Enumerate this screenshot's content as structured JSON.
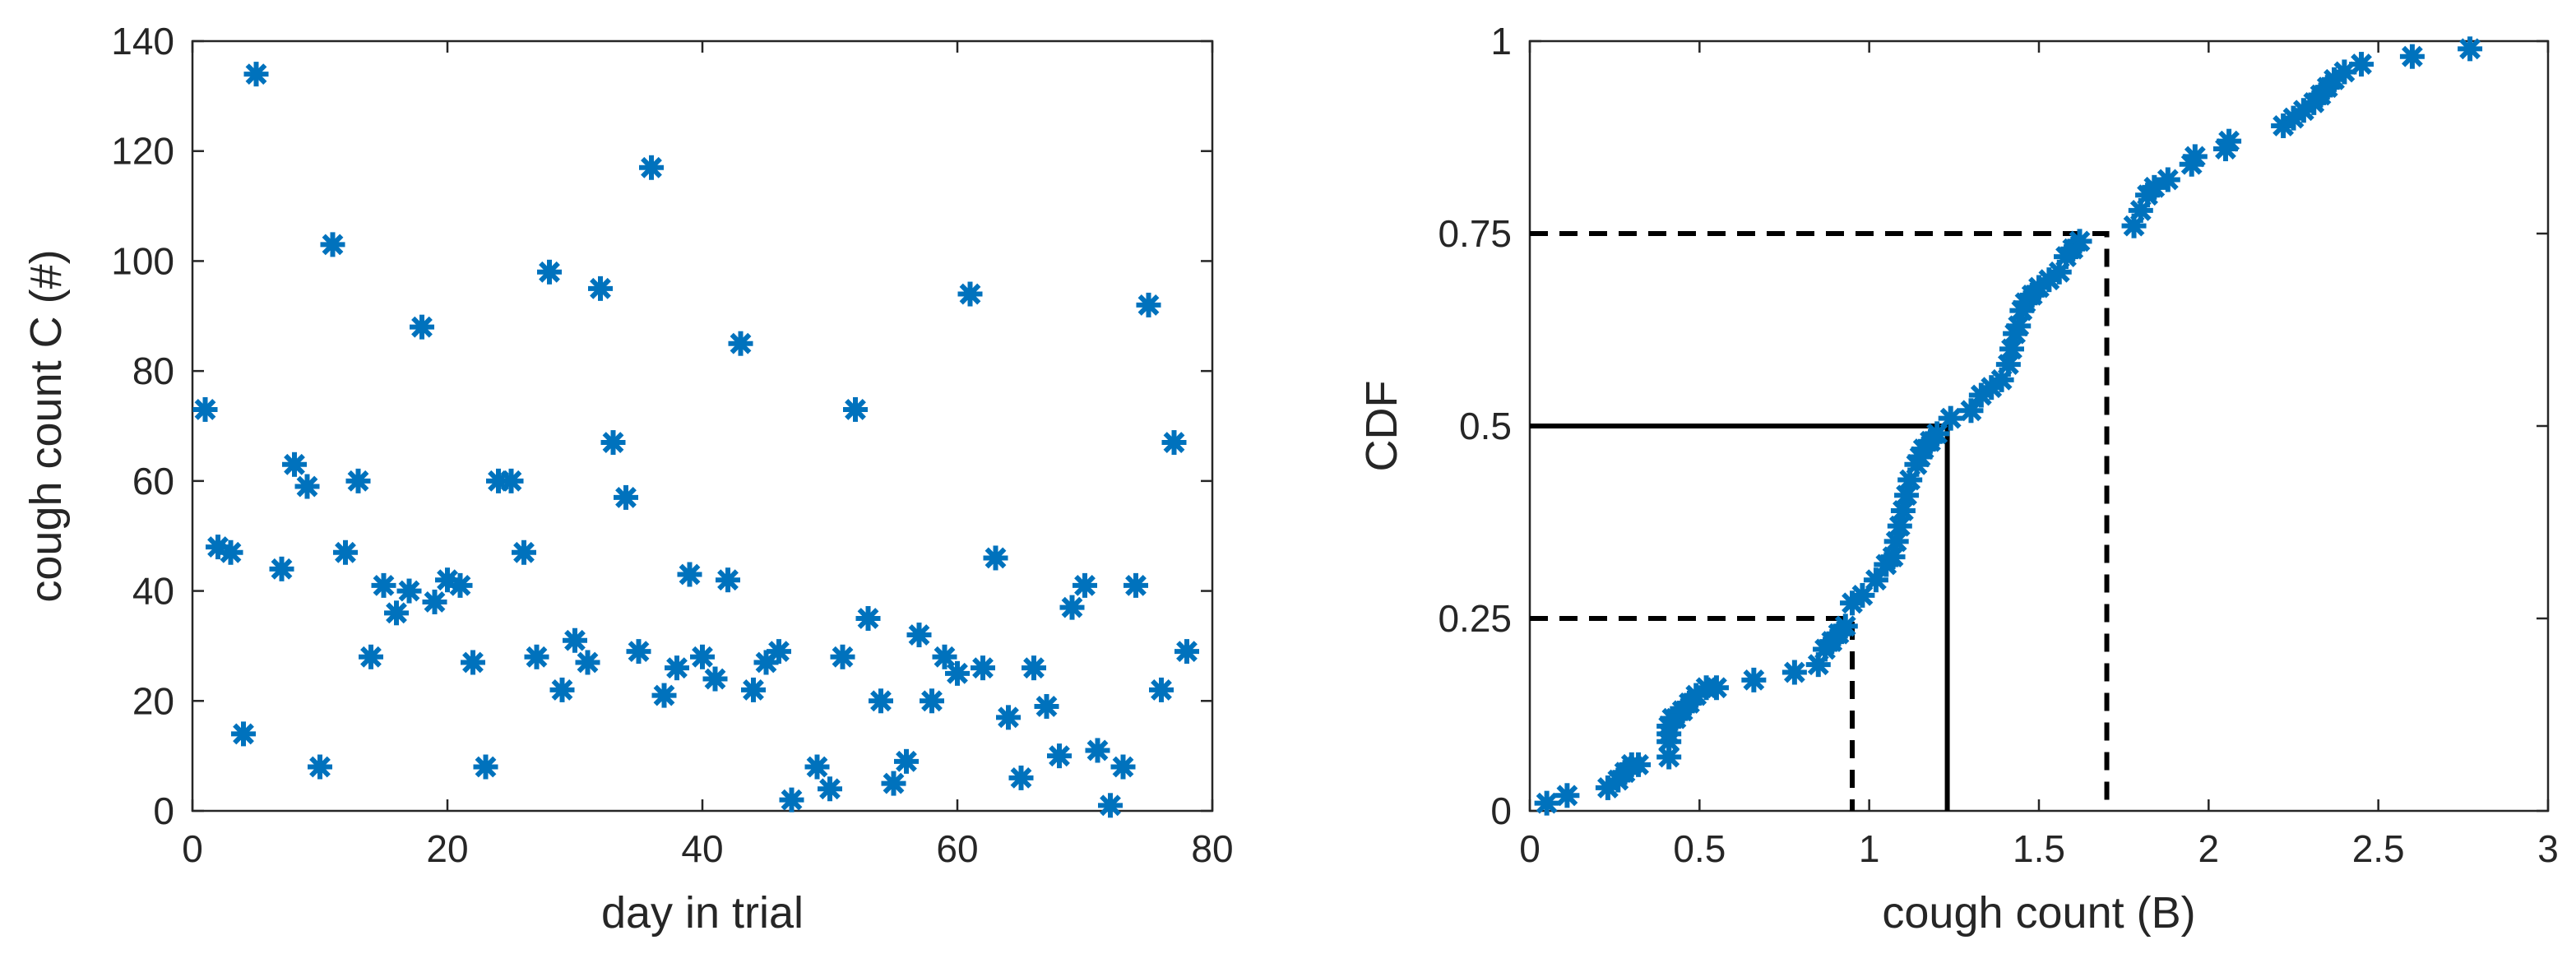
{
  "chart_data": [
    {
      "type": "scatter",
      "title": "",
      "xlabel": "day in trial",
      "ylabel": "cough count C (#)",
      "xlim": [
        0,
        80
      ],
      "ylim": [
        0,
        140
      ],
      "xticks": [
        0,
        20,
        40,
        60,
        80
      ],
      "yticks": [
        0,
        20,
        40,
        60,
        80,
        100,
        120,
        140
      ],
      "grid": false,
      "marker": "asterisk",
      "color": "#0072BD",
      "points": [
        [
          1,
          73
        ],
        [
          2,
          48
        ],
        [
          3,
          47
        ],
        [
          4,
          14
        ],
        [
          5,
          134
        ],
        [
          7,
          44
        ],
        [
          8,
          63
        ],
        [
          9,
          59
        ],
        [
          10,
          8
        ],
        [
          11,
          103
        ],
        [
          12,
          47
        ],
        [
          13,
          60
        ],
        [
          14,
          28
        ],
        [
          15,
          41
        ],
        [
          16,
          36
        ],
        [
          17,
          40
        ],
        [
          18,
          88
        ],
        [
          19,
          38
        ],
        [
          20,
          42
        ],
        [
          21,
          41
        ],
        [
          22,
          27
        ],
        [
          23,
          8
        ],
        [
          24,
          60
        ],
        [
          25,
          60
        ],
        [
          26,
          47
        ],
        [
          27,
          28
        ],
        [
          28,
          98
        ],
        [
          29,
          22
        ],
        [
          30,
          31
        ],
        [
          31,
          27
        ],
        [
          32,
          95
        ],
        [
          33,
          67
        ],
        [
          34,
          57
        ],
        [
          35,
          29
        ],
        [
          36,
          117
        ],
        [
          37,
          21
        ],
        [
          38,
          26
        ],
        [
          39,
          43
        ],
        [
          40,
          28
        ],
        [
          41,
          24
        ],
        [
          42,
          42
        ],
        [
          43,
          85
        ],
        [
          44,
          22
        ],
        [
          45,
          27
        ],
        [
          46,
          29
        ],
        [
          47,
          2
        ],
        [
          49,
          8
        ],
        [
          50,
          4
        ],
        [
          51,
          28
        ],
        [
          52,
          73
        ],
        [
          53,
          35
        ],
        [
          54,
          20
        ],
        [
          55,
          5
        ],
        [
          56,
          9
        ],
        [
          57,
          32
        ],
        [
          58,
          20
        ],
        [
          59,
          28
        ],
        [
          60,
          25
        ],
        [
          61,
          94
        ],
        [
          62,
          26
        ],
        [
          63,
          46
        ],
        [
          64,
          17
        ],
        [
          65,
          6
        ],
        [
          66,
          26
        ],
        [
          67,
          19
        ],
        [
          68,
          10
        ],
        [
          69,
          37
        ],
        [
          70,
          41
        ],
        [
          71,
          11
        ],
        [
          72,
          1
        ],
        [
          73,
          8
        ],
        [
          74,
          41
        ],
        [
          75,
          92
        ],
        [
          76,
          22
        ],
        [
          77,
          67
        ],
        [
          78,
          29
        ]
      ]
    },
    {
      "type": "line",
      "title": "",
      "xlabel": "cough count (B)",
      "ylabel": "CDF",
      "xlim": [
        0,
        3
      ],
      "ylim": [
        0,
        1
      ],
      "xticks": [
        0,
        0.5,
        1,
        1.5,
        2,
        2.5,
        3
      ],
      "xtick_labels": [
        "0",
        "0.5",
        "1",
        "1.5",
        "2",
        "2.5",
        "3"
      ],
      "yticks": [
        0,
        0.25,
        0.5,
        0.75,
        1
      ],
      "ytick_labels": [
        "0",
        "0.25",
        "0.5",
        "0.75",
        "1"
      ],
      "grid": false,
      "marker": "asterisk",
      "color": "#0072BD",
      "cdf_x": [
        0.05,
        0.11,
        0.23,
        0.26,
        0.28,
        0.3,
        0.32,
        0.41,
        0.41,
        0.41,
        0.41,
        0.42,
        0.43,
        0.45,
        0.47,
        0.49,
        0.52,
        0.55,
        0.66,
        0.78,
        0.85,
        0.87,
        0.89,
        0.91,
        0.93,
        0.95,
        0.98,
        1.02,
        1.05,
        1.07,
        1.08,
        1.09,
        1.1,
        1.11,
        1.12,
        1.14,
        1.15,
        1.16,
        1.18,
        1.2,
        1.24,
        1.3,
        1.33,
        1.36,
        1.39,
        1.41,
        1.42,
        1.43,
        1.44,
        1.45,
        1.46,
        1.48,
        1.5,
        1.53,
        1.56,
        1.58,
        1.6,
        1.62,
        1.78,
        1.8,
        1.82,
        1.84,
        1.88,
        1.95,
        1.96,
        2.05,
        2.06,
        2.22,
        2.25,
        2.28,
        2.31,
        2.33,
        2.35,
        2.37,
        2.4,
        2.45,
        2.6,
        2.77
      ],
      "cdf_y": [
        0.01,
        0.02,
        0.03,
        0.04,
        0.05,
        0.06,
        0.06,
        0.07,
        0.09,
        0.1,
        0.11,
        0.12,
        0.12,
        0.13,
        0.14,
        0.15,
        0.16,
        0.16,
        0.17,
        0.18,
        0.19,
        0.21,
        0.22,
        0.23,
        0.24,
        0.27,
        0.28,
        0.3,
        0.32,
        0.33,
        0.35,
        0.37,
        0.39,
        0.41,
        0.43,
        0.45,
        0.46,
        0.47,
        0.48,
        0.49,
        0.51,
        0.52,
        0.54,
        0.55,
        0.56,
        0.58,
        0.6,
        0.62,
        0.63,
        0.65,
        0.66,
        0.67,
        0.68,
        0.69,
        0.7,
        0.72,
        0.73,
        0.74,
        0.76,
        0.78,
        0.8,
        0.81,
        0.82,
        0.84,
        0.85,
        0.86,
        0.87,
        0.89,
        0.9,
        0.91,
        0.92,
        0.93,
        0.94,
        0.95,
        0.96,
        0.97,
        0.98,
        0.99
      ],
      "reference_lines": [
        {
          "quantile": 0.25,
          "x": 0.95,
          "style": "dashed"
        },
        {
          "quantile": 0.5,
          "x": 1.23,
          "style": "solid"
        },
        {
          "quantile": 0.75,
          "x": 1.7,
          "style": "dashed"
        }
      ]
    }
  ]
}
